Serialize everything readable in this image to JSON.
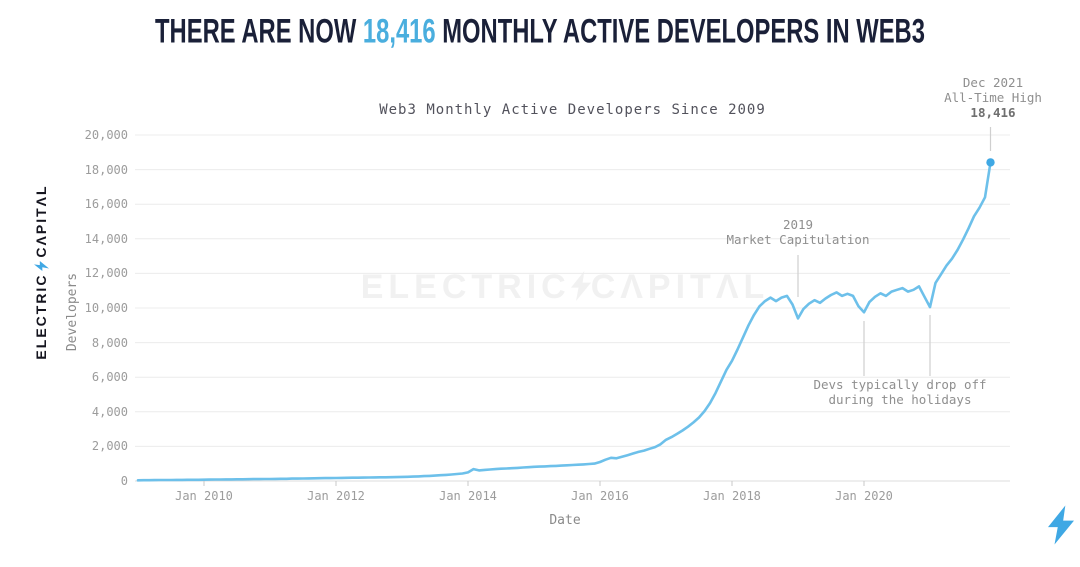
{
  "header": {
    "title_prefix": "THERE ARE NOW ",
    "title_highlight": "18,416",
    "title_suffix": " MONTHLY ACTIVE DEVELOPERS IN WEB3",
    "title_color": "#1a2038",
    "highlight_color": "#4aaede"
  },
  "brand": {
    "logo_left": "ELECTRIC",
    "logo_right": "CΛPITΛL",
    "watermark_left": "ELECTRIC",
    "watermark_right": "CΛPITΛL",
    "logo_color": "#15151f",
    "bolt_color": "#41a8e4",
    "watermark_color": "#f1f1f1"
  },
  "chart_data": {
    "type": "line",
    "title": "Web3 Monthly Active Developers Since 2009",
    "xlabel": "Date",
    "ylabel": "Developers",
    "x_start": "2009-01",
    "x_freq": "monthly",
    "ylim": [
      0,
      20000
    ],
    "grid": true,
    "line_color": "#6dc0ea",
    "endpoint_color": "#3fa8e4",
    "values": [
      40,
      45,
      48,
      52,
      55,
      58,
      60,
      63,
      66,
      68,
      70,
      72,
      76,
      80,
      84,
      88,
      92,
      95,
      98,
      101,
      104,
      107,
      110,
      113,
      116,
      120,
      125,
      130,
      136,
      141,
      146,
      151,
      156,
      161,
      166,
      170,
      174,
      178,
      183,
      188,
      193,
      197,
      201,
      206,
      211,
      216,
      221,
      228,
      236,
      245,
      256,
      268,
      282,
      297,
      314,
      333,
      354,
      377,
      403,
      432,
      500,
      690,
      610,
      640,
      665,
      690,
      710,
      725,
      740,
      760,
      780,
      800,
      818,
      832,
      846,
      860,
      875,
      890,
      906,
      922,
      940,
      958,
      980,
      1005,
      1100,
      1230,
      1340,
      1310,
      1400,
      1490,
      1590,
      1680,
      1760,
      1860,
      1960,
      2120,
      2380,
      2540,
      2720,
      2920,
      3140,
      3390,
      3670,
      4040,
      4500,
      5080,
      5760,
      6430,
      6950,
      7600,
      8300,
      9000,
      9600,
      10100,
      10400,
      10600,
      10400,
      10600,
      10700,
      10200,
      9400,
      9950,
      10250,
      10450,
      10300,
      10550,
      10750,
      10900,
      10700,
      10820,
      10700,
      10100,
      9750,
      10350,
      10650,
      10850,
      10700,
      10950,
      11050,
      11150,
      10950,
      11050,
      11250,
      10650,
      10050,
      11450,
      11950,
      12450,
      12850,
      13350,
      13950,
      14600,
      15300,
      15800,
      16400,
      18416
    ],
    "x_ticks": [
      {
        "label": "Jan 2010",
        "month_index": 12
      },
      {
        "label": "Jan 2012",
        "month_index": 36
      },
      {
        "label": "Jan 2014",
        "month_index": 60
      },
      {
        "label": "Jan 2016",
        "month_index": 84
      },
      {
        "label": "Jan 2018",
        "month_index": 108
      },
      {
        "label": "Jan 2020",
        "month_index": 132
      }
    ],
    "y_ticks": [
      {
        "label": "0",
        "value": 0
      },
      {
        "label": "2,000",
        "value": 2000
      },
      {
        "label": "4,000",
        "value": 4000
      },
      {
        "label": "6,000",
        "value": 6000
      },
      {
        "label": "8,000",
        "value": 8000
      },
      {
        "label": "10,000",
        "value": 10000
      },
      {
        "label": "12,000",
        "value": 12000
      },
      {
        "label": "14,000",
        "value": 14000
      },
      {
        "label": "16,000",
        "value": 16000
      },
      {
        "label": "18,000",
        "value": 18000
      },
      {
        "label": "20,000",
        "value": 20000
      }
    ],
    "annotations": {
      "capitulation": {
        "line1": "2019",
        "line2": "Market Capitulation",
        "marker_month": 120
      },
      "holidays": {
        "line1": "Devs typically drop off",
        "line2": "during the holidays",
        "marker_months": [
          132,
          144
        ]
      },
      "ath": {
        "line1": "Dec 2021",
        "line2": "All-Time High",
        "line3": "18,416",
        "marker_month": 155
      }
    }
  }
}
